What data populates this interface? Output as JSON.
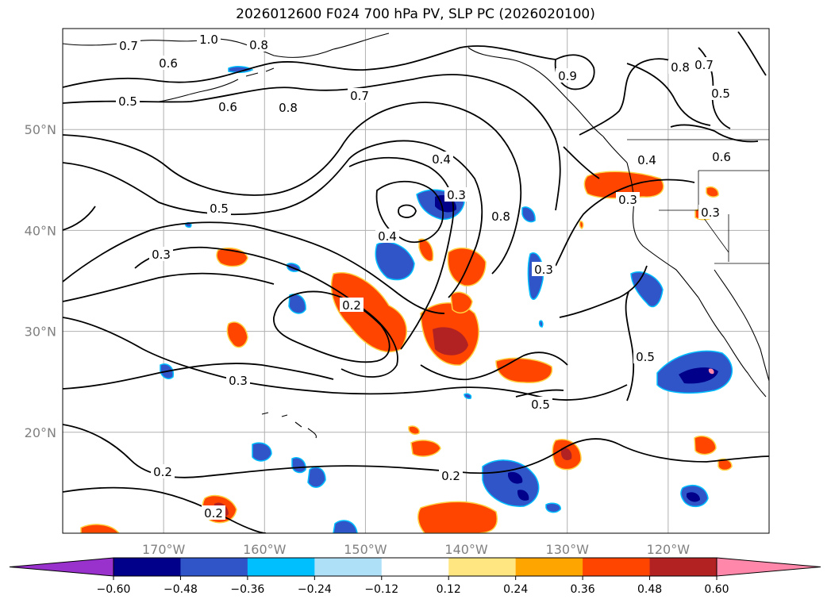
{
  "title": "2026012600 F024 700 hPa PV, SLP PC (2026020100)",
  "map": {
    "lon_range": [
      -180,
      -110
    ],
    "lat_range": [
      10,
      60
    ],
    "lon_ticks": [
      {
        "value": -170,
        "label": "170°W"
      },
      {
        "value": -160,
        "label": "160°W"
      },
      {
        "value": -150,
        "label": "150°W"
      },
      {
        "value": -140,
        "label": "140°W"
      },
      {
        "value": -130,
        "label": "130°W"
      },
      {
        "value": -120,
        "label": "120°W"
      }
    ],
    "lat_ticks": [
      {
        "value": 20,
        "label": "20°N"
      },
      {
        "value": 30,
        "label": "30°N"
      },
      {
        "value": 40,
        "label": "40°N"
      },
      {
        "value": 50,
        "label": "50°N"
      }
    ],
    "gridlines": true,
    "contour_labels": [
      "1.0",
      "0.8",
      "0.7",
      "0.6",
      "0.5",
      "0.7",
      "0.8",
      "0.6",
      "0.5",
      "0.3",
      "0.4",
      "0.3",
      "0.4",
      "0.2",
      "0.3",
      "0.2",
      "0.2",
      "0.5",
      "0.8",
      "0.3",
      "0.2",
      "0.5",
      "0.8",
      "0.7",
      "0.5",
      "0.6",
      "0.3",
      "0.4",
      "0.3",
      "0.9"
    ]
  },
  "colorbar": {
    "ticks": [
      "−0.60",
      "−0.48",
      "−0.36",
      "−0.24",
      "−0.12",
      "0.12",
      "0.24",
      "0.36",
      "0.48",
      "0.60"
    ],
    "colors": [
      "#9932cc",
      "#00008b",
      "#3055c8",
      "#00bfff",
      "#aee0f8",
      "#ffffff",
      "#ffe680",
      "#ffa500",
      "#ff4500",
      "#b22222",
      "#ff88aa"
    ]
  }
}
